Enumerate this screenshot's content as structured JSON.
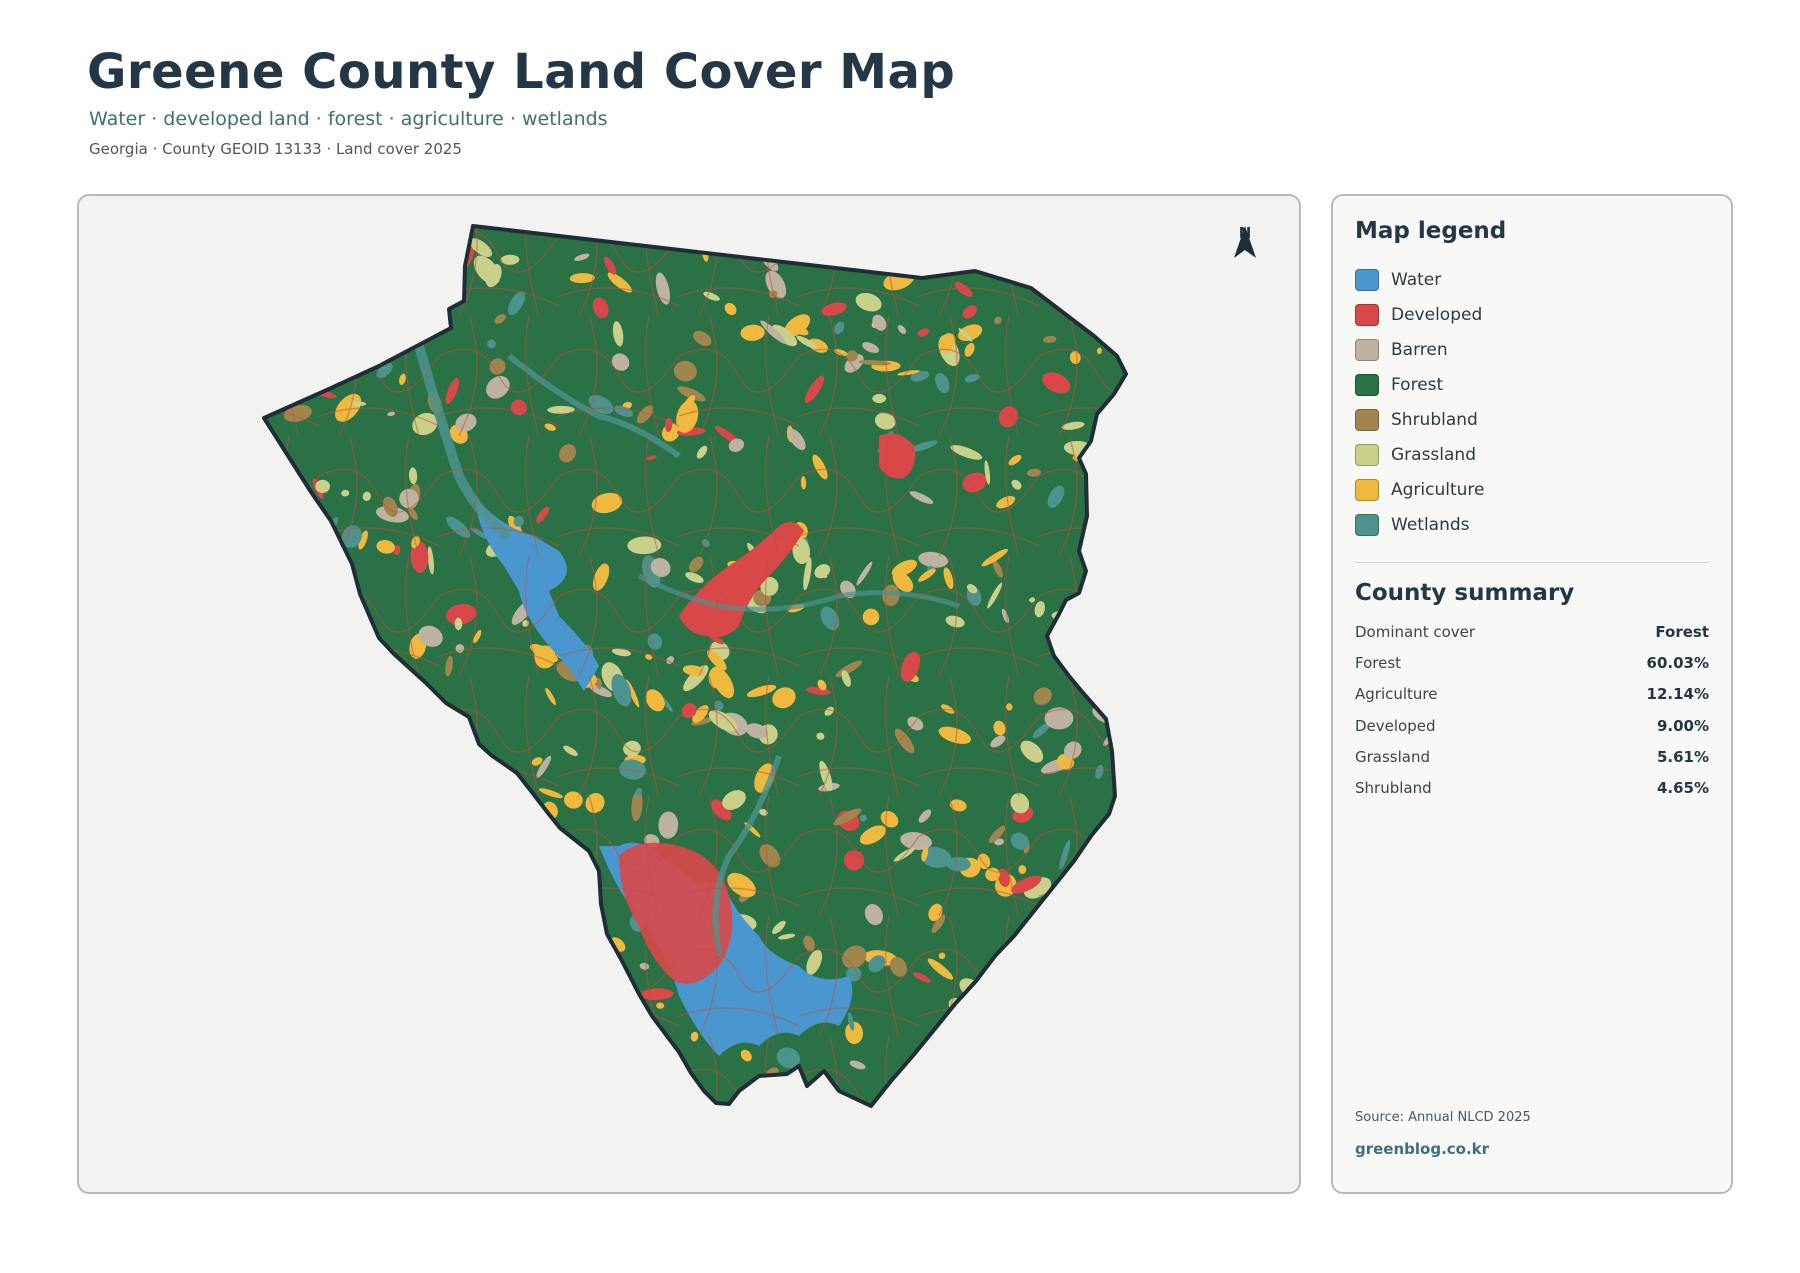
{
  "header": {
    "title": "Greene County Land Cover Map",
    "subtitle": "Water · developed land · forest · agriculture · wetlands",
    "meta": "Georgia · County GEOID 13133 · Land cover 2025"
  },
  "map": {
    "north_label": "N",
    "icon": "north-arrow-icon"
  },
  "legend": {
    "title": "Map legend",
    "items": [
      {
        "label": "Water",
        "color": "#4a97d0"
      },
      {
        "label": "Developed",
        "color": "#d94848"
      },
      {
        "label": "Barren",
        "color": "#bdb3a0"
      },
      {
        "label": "Forest",
        "color": "#2a7145"
      },
      {
        "label": "Shrubland",
        "color": "#a0864e"
      },
      {
        "label": "Grassland",
        "color": "#c9d08a"
      },
      {
        "label": "Agriculture",
        "color": "#eeb93e"
      },
      {
        "label": "Wetlands",
        "color": "#4e928e"
      }
    ]
  },
  "summary": {
    "title": "County summary",
    "rows": [
      {
        "label": "Dominant cover",
        "value": "Forest"
      },
      {
        "label": "Forest",
        "value": "60.03%"
      },
      {
        "label": "Agriculture",
        "value": "12.14%"
      },
      {
        "label": "Developed",
        "value": "9.00%"
      },
      {
        "label": "Grassland",
        "value": "5.61%"
      },
      {
        "label": "Shrubland",
        "value": "4.65%"
      }
    ]
  },
  "footer": {
    "source": "Source: Annual NLCD 2025",
    "site": "greenblog.co.kr"
  }
}
